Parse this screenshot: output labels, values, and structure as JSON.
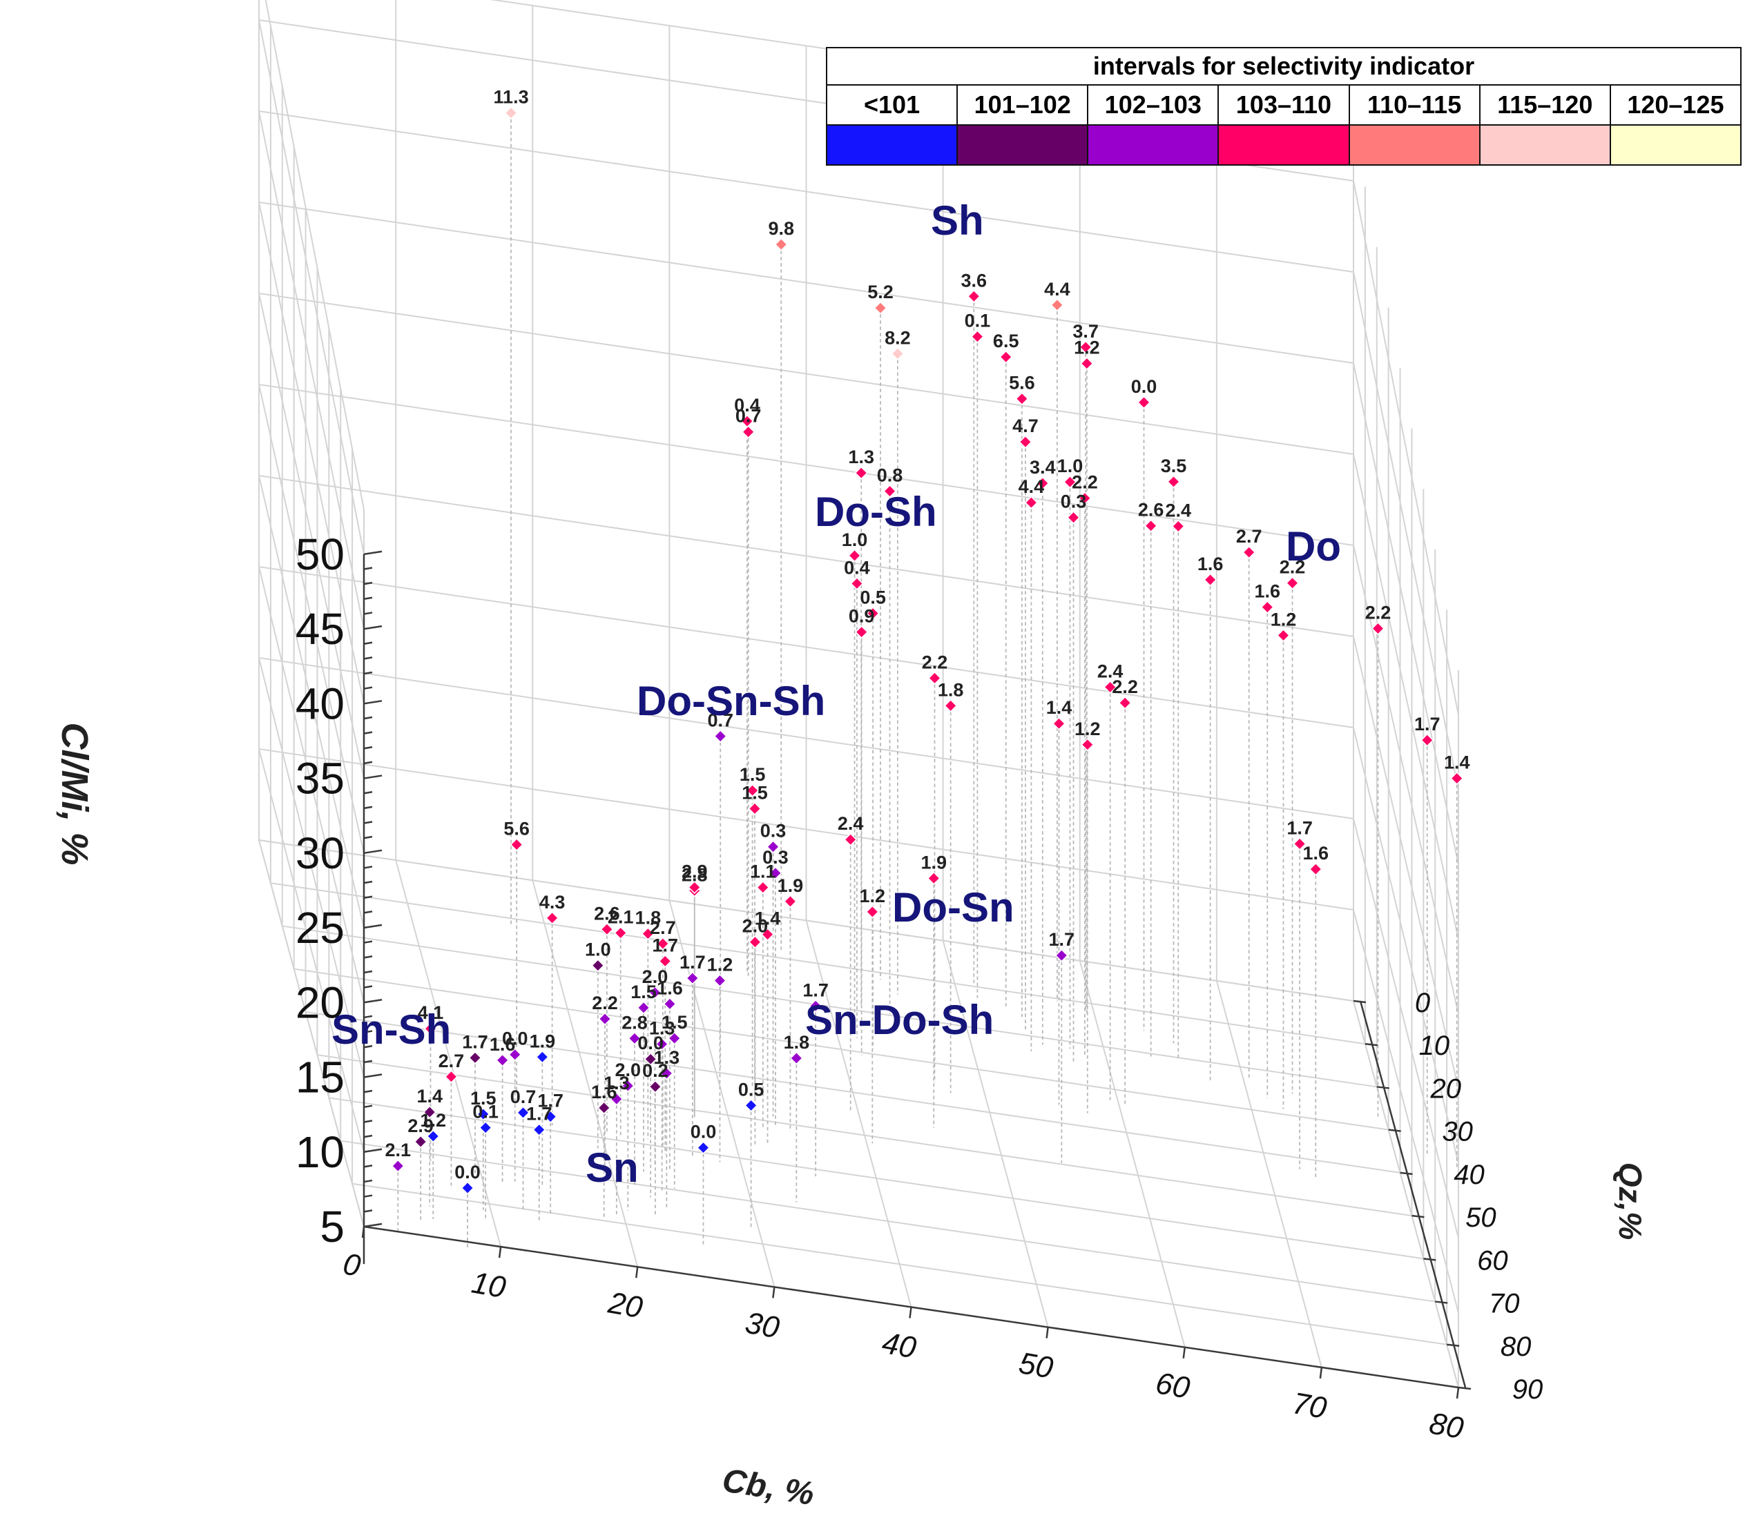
{
  "chart_data": {
    "type": "scatter3d",
    "x_axis": {
      "label": "Cb, %",
      "ticks": [
        "0",
        "10",
        "20",
        "30",
        "40",
        "50",
        "60",
        "70",
        "80"
      ],
      "range": [
        0,
        80
      ]
    },
    "y_axis": {
      "label": "Qz,%",
      "ticks": [
        "0",
        "10",
        "20",
        "30",
        "40",
        "50",
        "60",
        "70",
        "80",
        "90"
      ],
      "range": [
        0,
        90
      ]
    },
    "z_axis": {
      "label": "Cl/Mi, %",
      "ticks": [
        "5",
        "10",
        "15",
        "20",
        "25",
        "30",
        "35",
        "40",
        "45",
        "50"
      ],
      "range": [
        5,
        50
      ]
    },
    "legend": {
      "title": "intervals for selectivity indicator",
      "items": [
        {
          "label": "<101",
          "color": "#1414ff"
        },
        {
          "label": "101–102",
          "color": "#660066"
        },
        {
          "label": "102–103",
          "color": "#9900cc"
        },
        {
          "label": "103–110",
          "color": "#ff0066"
        },
        {
          "label": "110–115",
          "color": "#ff7b7b"
        },
        {
          "label": "115–120",
          "color": "#ffcccc"
        },
        {
          "label": "120–125",
          "color": "#ffffcc"
        }
      ]
    },
    "regions": [
      "Sh",
      "Do-Sh",
      "Do",
      "Do-Sn-Sh",
      "Do-Sn",
      "Sn-Do-Sh",
      "Sn-Sh",
      "Sn"
    ],
    "points": [
      {
        "cb": 18,
        "qz": 5,
        "cl": 48.5,
        "label": "11.3",
        "cls": 5
      },
      {
        "cb": 38,
        "qz": 2,
        "cl": 42.5,
        "label": "9.8",
        "cls": 4
      },
      {
        "cb": 45,
        "qz": 5,
        "cl": 40.7,
        "label": "5.2",
        "cls": 4
      },
      {
        "cb": 46,
        "qz": 8,
        "cl": 39.2,
        "label": "8.2",
        "cls": 5
      },
      {
        "cb": 52,
        "qz": 3,
        "cl": 41.5,
        "label": "3.6",
        "cls": 3
      },
      {
        "cb": 58,
        "qz": 4,
        "cl": 42.0,
        "label": "4.4",
        "cls": 4
      },
      {
        "cb": 52,
        "qz": 6,
        "cl": 40.2,
        "label": "0.1",
        "cls": 3
      },
      {
        "cb": 54,
        "qz": 7,
        "cl": 39.6,
        "label": "6.5",
        "cls": 3
      },
      {
        "cb": 60,
        "qz": 5,
        "cl": 40.2,
        "label": "3.7",
        "cls": 3
      },
      {
        "cb": 60,
        "qz": 6,
        "cl": 39.6,
        "label": "1.2",
        "cls": 3
      },
      {
        "cb": 64,
        "qz": 8,
        "cl": 38.5,
        "label": "0.0",
        "cls": 3
      },
      {
        "cb": 55,
        "qz": 9,
        "cl": 38.0,
        "label": "5.6",
        "cls": 3
      },
      {
        "cb": 55,
        "qz": 12,
        "cl": 36.5,
        "label": "4.7",
        "cls": 3
      },
      {
        "cb": 56,
        "qz": 15,
        "cl": 35.2,
        "label": "3.4",
        "cls": 3
      },
      {
        "cb": 58,
        "qz": 15,
        "cl": 35.5,
        "label": "1.0",
        "cls": 3
      },
      {
        "cb": 59,
        "qz": 16,
        "cl": 35.0,
        "label": "2.2",
        "cls": 3
      },
      {
        "cb": 55,
        "qz": 17,
        "cl": 34.6,
        "label": "4.4",
        "cls": 3
      },
      {
        "cb": 58,
        "qz": 18,
        "cl": 34.4,
        "label": "0.3",
        "cls": 3
      },
      {
        "cb": 35,
        "qz": 8,
        "cl": 34.2,
        "label": "0.4",
        "cls": 3
      },
      {
        "cb": 35,
        "qz": 9,
        "cl": 33.9,
        "label": "0.7",
        "cls": 3
      },
      {
        "cb": 43,
        "qz": 12,
        "cl": 33.4,
        "label": "1.3",
        "cls": 3
      },
      {
        "cb": 45,
        "qz": 13,
        "cl": 32.9,
        "label": "0.8",
        "cls": 3
      },
      {
        "cb": 64,
        "qz": 14,
        "cl": 33.4,
        "label": "2.6",
        "cls": 3
      },
      {
        "cb": 66,
        "qz": 14,
        "cl": 33.6,
        "label": "2.4",
        "cls": 3
      },
      {
        "cb": 66,
        "qz": 10,
        "cl": 34.9,
        "label": "3.5",
        "cls": 3
      },
      {
        "cb": 68,
        "qz": 18,
        "cl": 32.0,
        "label": "1.6",
        "cls": 3
      },
      {
        "cb": 71,
        "qz": 16,
        "cl": 33.3,
        "label": "2.7",
        "cls": 3
      },
      {
        "cb": 72,
        "qz": 20,
        "cl": 31.5,
        "label": "1.6",
        "cls": 3
      },
      {
        "cb": 74,
        "qz": 18,
        "cl": 32.5,
        "label": "2.2",
        "cls": 3
      },
      {
        "cb": 73,
        "qz": 22,
        "cl": 30.6,
        "label": "1.2",
        "cls": 3
      },
      {
        "cb": 80,
        "qz": 21,
        "cl": 31.5,
        "label": "2.2",
        "cls": 3
      },
      {
        "cb": 42,
        "qz": 18,
        "cl": 30.4,
        "label": "1.0",
        "cls": 3
      },
      {
        "cb": 42,
        "qz": 20,
        "cl": 29.4,
        "label": "0.4",
        "cls": 3
      },
      {
        "cb": 43,
        "qz": 22,
        "cl": 28.4,
        "label": "0.5",
        "cls": 3
      },
      {
        "cb": 42,
        "qz": 24,
        "cl": 27.8,
        "label": "0.9",
        "cls": 3
      },
      {
        "cb": 47,
        "qz": 28,
        "cl": 26.9,
        "label": "2.2",
        "cls": 3
      },
      {
        "cb": 48,
        "qz": 30,
        "cl": 26.0,
        "label": "1.8",
        "cls": 3
      },
      {
        "cb": 56,
        "qz": 29,
        "cl": 25.6,
        "label": "1.4",
        "cls": 3
      },
      {
        "cb": 58,
        "qz": 30,
        "cl": 24.9,
        "label": "1.2",
        "cls": 3
      },
      {
        "cb": 60,
        "qz": 26,
        "cl": 27.3,
        "label": "2.4",
        "cls": 3
      },
      {
        "cb": 61,
        "qz": 27,
        "cl": 26.8,
        "label": "2.2",
        "cls": 3
      },
      {
        "cb": 83,
        "qz": 28,
        "cl": 27.5,
        "label": "1.7",
        "cls": 3
      },
      {
        "cb": 85,
        "qz": 30,
        "cl": 26.1,
        "label": "1.4",
        "cls": 3
      },
      {
        "cb": 73,
        "qz": 36,
        "cl": 22.6,
        "label": "1.7",
        "cls": 3
      },
      {
        "cb": 74,
        "qz": 38,
        "cl": 21.8,
        "label": "1.6",
        "cls": 3
      },
      {
        "cb": 31,
        "qz": 32,
        "cl": 22.8,
        "label": "0.7",
        "cls": 2
      },
      {
        "cb": 33,
        "qz": 36,
        "cl": 21.0,
        "label": "1.5",
        "cls": 3
      },
      {
        "cb": 33,
        "qz": 38,
        "cl": 20.5,
        "label": "1.5",
        "cls": 3
      },
      {
        "cb": 34,
        "qz": 42,
        "cl": 19.5,
        "label": "0.3",
        "cls": 2
      },
      {
        "cb": 34,
        "qz": 44,
        "cl": 18.5,
        "label": "0.3",
        "cls": 2
      },
      {
        "cb": 33,
        "qz": 45,
        "cl": 17.8,
        "label": "1.1",
        "cls": 3
      },
      {
        "cb": 35,
        "qz": 45,
        "cl": 17.2,
        "label": "1.9",
        "cls": 3
      },
      {
        "cb": 40,
        "qz": 38,
        "cl": 19.5,
        "label": "2.4",
        "cls": 3
      },
      {
        "cb": 41,
        "qz": 45,
        "cl": 17.3,
        "label": "1.2",
        "cls": 3
      },
      {
        "cb": 46,
        "qz": 39,
        "cl": 18.2,
        "label": "1.9",
        "cls": 3
      },
      {
        "cb": 55,
        "qz": 43,
        "cl": 15.8,
        "label": "1.7",
        "cls": 2
      },
      {
        "cb": 28,
        "qz": 45,
        "cl": 17.0,
        "label": "2.8",
        "cls": 3
      },
      {
        "cb": 28,
        "qz": 45,
        "cl": 17.2,
        "label": "2.9",
        "cls": 3
      },
      {
        "cb": 32,
        "qz": 50,
        "cl": 15.8,
        "label": "2.0",
        "cls": 3
      },
      {
        "cb": 33,
        "qz": 49,
        "cl": 16.1,
        "label": "1.4",
        "cls": 3
      },
      {
        "cb": 27,
        "qz": 55,
        "cl": 14.4,
        "label": "1.7",
        "cls": 2
      },
      {
        "cb": 29,
        "qz": 55,
        "cl": 14.5,
        "label": "1.2",
        "cls": 2
      },
      {
        "cb": 36,
        "qz": 55,
        "cl": 13.8,
        "label": "1.7",
        "cls": 2
      },
      {
        "cb": 34,
        "qz": 62,
        "cl": 12.3,
        "label": "1.8",
        "cls": 2
      },
      {
        "cb": 15,
        "qz": 45,
        "cl": 18.2,
        "label": "5.6",
        "cls": 3
      },
      {
        "cb": 17,
        "qz": 52,
        "cl": 16.0,
        "label": "4.3",
        "cls": 3
      },
      {
        "cb": 21,
        "qz": 52,
        "cl": 15.8,
        "label": "2.6",
        "cls": 3
      },
      {
        "cb": 22,
        "qz": 52,
        "cl": 15.7,
        "label": "2.1",
        "cls": 3
      },
      {
        "cb": 24,
        "qz": 52,
        "cl": 15.9,
        "label": "1.8",
        "cls": 3
      },
      {
        "cb": 25,
        "qz": 53,
        "cl": 15.7,
        "label": "2.7",
        "cls": 3
      },
      {
        "cb": 25,
        "qz": 55,
        "cl": 15.2,
        "label": "1.7",
        "cls": 3
      },
      {
        "cb": 20,
        "qz": 56,
        "cl": 14.6,
        "label": "1.0",
        "cls": 1
      },
      {
        "cb": 24,
        "qz": 58,
        "cl": 14.0,
        "label": "2.0",
        "cls": 2
      },
      {
        "cb": 25,
        "qz": 59,
        "cl": 13.7,
        "label": "1.6",
        "cls": 2
      },
      {
        "cb": 23,
        "qz": 60,
        "cl": 13.5,
        "label": "1.5",
        "cls": 2
      },
      {
        "cb": 20,
        "qz": 62,
        "cl": 13.0,
        "label": "2.2",
        "cls": 2
      },
      {
        "cb": 22,
        "qz": 64,
        "cl": 12.6,
        "label": "2.8",
        "cls": 2
      },
      {
        "cb": 24,
        "qz": 64,
        "cl": 12.5,
        "label": "1.3",
        "cls": 2
      },
      {
        "cb": 25,
        "qz": 63,
        "cl": 12.7,
        "label": "1.5",
        "cls": 2
      },
      {
        "cb": 23,
        "qz": 66,
        "cl": 12.0,
        "label": "0.0",
        "cls": 1
      },
      {
        "cb": 21,
        "qz": 70,
        "cl": 11.2,
        "label": "2.0",
        "cls": 2
      },
      {
        "cb": 23,
        "qz": 70,
        "cl": 11.4,
        "label": "0.2",
        "cls": 1
      },
      {
        "cb": 24,
        "qz": 68,
        "cl": 11.8,
        "label": "1.3",
        "cls": 2
      },
      {
        "cb": 30,
        "qz": 70,
        "cl": 11.1,
        "label": "0.5",
        "cls": 0
      },
      {
        "cb": 20,
        "qz": 72,
        "cl": 10.8,
        "label": "1.3",
        "cls": 2
      },
      {
        "cb": 19,
        "qz": 73,
        "cl": 10.4,
        "label": "1.6",
        "cls": 1
      },
      {
        "cb": 7,
        "qz": 65,
        "cl": 11.6,
        "label": "4.1",
        "cls": 3
      },
      {
        "cb": 10,
        "qz": 68,
        "cl": 11.0,
        "label": "1.7",
        "cls": 1
      },
      {
        "cb": 12,
        "qz": 68,
        "cl": 11.1,
        "label": "1.6",
        "cls": 2
      },
      {
        "cb": 13,
        "qz": 67,
        "cl": 11.3,
        "label": "0.0",
        "cls": 2
      },
      {
        "cb": 15,
        "qz": 67,
        "cl": 11.4,
        "label": "1.9",
        "cls": 0
      },
      {
        "cb": 8,
        "qz": 71,
        "cl": 10.4,
        "label": "2.7",
        "cls": 3
      },
      {
        "cb": 6,
        "qz": 76,
        "cl": 9.3,
        "label": "1.4",
        "cls": 1
      },
      {
        "cb": 10,
        "qz": 75,
        "cl": 9.4,
        "label": "1.5",
        "cls": 0
      },
      {
        "cb": 10,
        "qz": 77,
        "cl": 9.1,
        "label": "0.1",
        "cls": 0
      },
      {
        "cb": 13,
        "qz": 74,
        "cl": 9.6,
        "label": "0.7",
        "cls": 0
      },
      {
        "cb": 14,
        "qz": 76,
        "cl": 9.2,
        "label": "1.7",
        "cls": 0
      },
      {
        "cb": 15,
        "qz": 74,
        "cl": 9.6,
        "label": "1.7",
        "cls": 0
      },
      {
        "cb": 5,
        "qz": 80,
        "cl": 8.4,
        "label": "2.9",
        "cls": 1
      },
      {
        "cb": 6,
        "qz": 79,
        "cl": 8.6,
        "label": "1.2",
        "cls": 0
      },
      {
        "cb": 3,
        "qz": 84,
        "cl": 7.7,
        "label": "2.1",
        "cls": 2
      },
      {
        "cb": 8,
        "qz": 85,
        "cl": 7.2,
        "label": "0.0",
        "cls": 0
      },
      {
        "cb": 26,
        "qz": 76,
        "cl": 9.6,
        "label": "0.0",
        "cls": 0
      }
    ]
  }
}
